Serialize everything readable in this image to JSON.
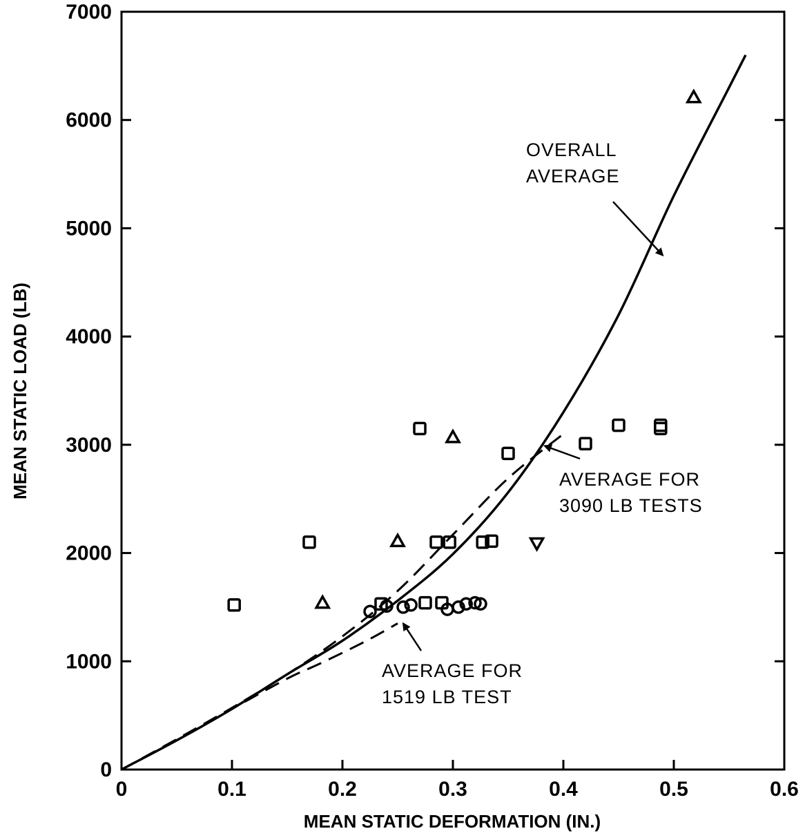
{
  "chart_data": {
    "type": "scatter",
    "xlabel": "MEAN STATIC DEFORMATION (IN.)",
    "ylabel": "MEAN STATIC LOAD (LB)",
    "xlim": [
      0,
      0.6
    ],
    "ylim": [
      0,
      7000
    ],
    "x_ticks": [
      0,
      0.1,
      0.2,
      0.3,
      0.4,
      0.5,
      0.6
    ],
    "x_tick_labels": [
      "0",
      "0.1",
      "0.2",
      "0.3",
      "0.4",
      "0.5",
      "0.6"
    ],
    "y_ticks": [
      0,
      1000,
      2000,
      3000,
      4000,
      5000,
      6000,
      7000
    ],
    "y_tick_labels": [
      "0",
      "1000",
      "2000",
      "3000",
      "4000",
      "5000",
      "6000",
      "7000"
    ],
    "grid": false,
    "curves": [
      {
        "label": "OVERALL AVERAGE",
        "style": "solid",
        "x": [
          0,
          0.05,
          0.1,
          0.15,
          0.2,
          0.25,
          0.3,
          0.35,
          0.4,
          0.45,
          0.5,
          0.55,
          0.565
        ],
        "y": [
          0,
          270,
          560,
          880,
          1190,
          1560,
          1990,
          2560,
          3300,
          4200,
          5300,
          6300,
          6600
        ]
      },
      {
        "label": "AVERAGE FOR 3090 LB TESTS",
        "style": "dashed",
        "x": [
          0,
          0.05,
          0.1,
          0.15,
          0.2,
          0.25,
          0.3,
          0.35,
          0.4
        ],
        "y": [
          0,
          280,
          570,
          880,
          1230,
          1650,
          2170,
          2690,
          3100
        ]
      },
      {
        "label": "AVERAGE FOR 1519 LB TEST",
        "style": "dashed",
        "x": [
          0,
          0.05,
          0.1,
          0.15,
          0.18,
          0.22,
          0.25
        ],
        "y": [
          0,
          270,
          560,
          840,
          980,
          1180,
          1350
        ]
      }
    ],
    "series": [
      {
        "marker": "square",
        "points": [
          [
            0.102,
            1520
          ],
          [
            0.17,
            2100
          ],
          [
            0.235,
            1530
          ],
          [
            0.27,
            3150
          ],
          [
            0.275,
            1540
          ],
          [
            0.285,
            2100
          ],
          [
            0.29,
            1540
          ],
          [
            0.297,
            2100
          ],
          [
            0.327,
            2100
          ],
          [
            0.335,
            2110
          ],
          [
            0.35,
            2920
          ],
          [
            0.42,
            3010
          ],
          [
            0.45,
            3180
          ],
          [
            0.488,
            3150
          ],
          [
            0.488,
            3180
          ]
        ]
      },
      {
        "marker": "triangle-up",
        "points": [
          [
            0.182,
            1540
          ],
          [
            0.25,
            2110
          ],
          [
            0.3,
            3070
          ],
          [
            0.518,
            6210
          ]
        ]
      },
      {
        "marker": "triangle-down",
        "points": [
          [
            0.376,
            2090
          ]
        ]
      },
      {
        "marker": "circle",
        "points": [
          [
            0.225,
            1460
          ],
          [
            0.24,
            1510
          ],
          [
            0.255,
            1500
          ],
          [
            0.262,
            1520
          ],
          [
            0.295,
            1480
          ],
          [
            0.305,
            1500
          ],
          [
            0.312,
            1530
          ],
          [
            0.32,
            1540
          ],
          [
            0.325,
            1530
          ]
        ]
      }
    ],
    "annotations": [
      {
        "lines": [
          "OVERALL",
          "AVERAGE"
        ],
        "arrow_to": [
          0.49,
          4750
        ]
      },
      {
        "lines": [
          "AVERAGE FOR",
          "3090 LB TESTS"
        ],
        "arrow_to": [
          0.383,
          2990
        ]
      },
      {
        "lines": [
          "AVERAGE FOR",
          "1519 LB TEST"
        ],
        "arrow_to": [
          0.255,
          1350
        ]
      }
    ]
  }
}
